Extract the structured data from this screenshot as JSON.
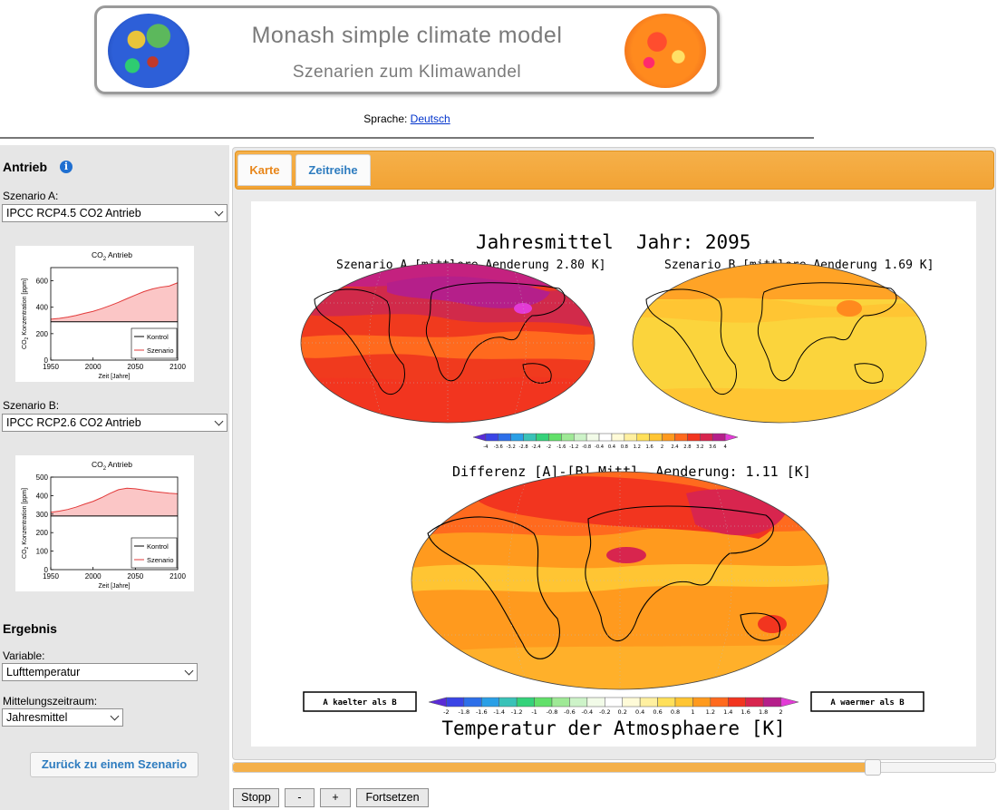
{
  "header": {
    "title": "Monash simple climate model",
    "subtitle": "Szenarien zum Klimawandel",
    "language_label": "Sprache:",
    "language_link": "Deutsch"
  },
  "sidebar": {
    "forcing_heading": "Antrieb",
    "scenario_a_label": "Szenario A:",
    "scenario_a_value": "IPCC RCP4.5 CO2 Antrieb",
    "scenario_b_label": "Szenario B:",
    "scenario_b_value": "IPCC RCP2.6 CO2 Antrieb",
    "result_heading": "Ergebnis",
    "variable_label": "Variable:",
    "variable_value": "Lufttemperatur",
    "period_label": "Mittelungszeitraum:",
    "period_value": "Jahresmittel",
    "back_button": "Zurück zu einem Szenario"
  },
  "mini_charts": [
    {
      "title_main": "CO",
      "title_sub": "2",
      "title_rest": " Antrieb",
      "ylabel_main": "CO",
      "ylabel_sub": "2",
      "ylabel_rest": " Konzentration [ppm]",
      "xlabel": "Zeit [Jahre]",
      "yticks": [
        "0",
        "200",
        "400",
        "600"
      ],
      "xticks": [
        "1950",
        "2000",
        "2050",
        "2100"
      ],
      "legend": [
        "Kontrol",
        "Szenario"
      ],
      "ymax": 700,
      "kontrol": 290,
      "szenario_years": [
        1950,
        1960,
        1970,
        1980,
        1990,
        2000,
        2010,
        2020,
        2030,
        2040,
        2050,
        2060,
        2070,
        2080,
        2090,
        2100
      ],
      "szenario_values": [
        310,
        316,
        325,
        338,
        354,
        369,
        389,
        412,
        437,
        465,
        492,
        518,
        538,
        552,
        560,
        585
      ]
    },
    {
      "title_main": "CO",
      "title_sub": "2",
      "title_rest": " Antrieb",
      "ylabel_main": "CO",
      "ylabel_sub": "2",
      "ylabel_rest": " Konzentration [ppm]",
      "xlabel": "Zeit [Jahre]",
      "yticks": [
        "0",
        "100",
        "200",
        "300",
        "400",
        "500"
      ],
      "xticks": [
        "1950",
        "2000",
        "2050",
        "2100"
      ],
      "legend": [
        "Kontrol",
        "Szenario"
      ],
      "ymax": 500,
      "kontrol": 290,
      "szenario_years": [
        1950,
        1960,
        1970,
        1980,
        1990,
        2000,
        2010,
        2020,
        2030,
        2040,
        2050,
        2060,
        2070,
        2080,
        2090,
        2100
      ],
      "szenario_values": [
        310,
        316,
        325,
        338,
        354,
        369,
        389,
        412,
        432,
        440,
        437,
        430,
        423,
        418,
        413,
        410
      ]
    }
  ],
  "tabs": [
    "Karte",
    "Zeitreihe"
  ],
  "plot": {
    "title_left": "Jahresmittel",
    "title_right": "Jahr: 2095",
    "map_a_title": "Szenario A [mittlere Aenderung 2.80 K]",
    "map_b_title": "Szenario B [mittlere Aenderung 1.69 K]",
    "diff_title_left": "Differenz [A]-[B]",
    "diff_title_right": "Mittl. Aenderung: 1.11 [K]",
    "colder_label": "A kaelter als B",
    "warmer_label": "A waermer als B",
    "bottom_title": "Temperatur der Atmosphaere [K]",
    "scale_top_labels": [
      "-4",
      "-3.6",
      "-3.2",
      "-2.8",
      "-2.4",
      "-2",
      "-1.6",
      "-1.2",
      "-0.8",
      "-0.4",
      "0.4",
      "0.8",
      "1.2",
      "1.6",
      "2",
      "2.4",
      "2.8",
      "3.2",
      "3.6",
      "4"
    ],
    "scale_bottom_labels": [
      "-2",
      "-1.8",
      "-1.6",
      "-1.4",
      "-1.2",
      "-1",
      "-0.8",
      "-0.6",
      "-0.4",
      "-0.2",
      "0.2",
      "0.4",
      "0.6",
      "0.8",
      "1",
      "1.2",
      "1.4",
      "1.6",
      "1.8",
      "2"
    ],
    "scale_colors": [
      "#5a2bd6",
      "#3a44e6",
      "#2d6fe9",
      "#2a9fe6",
      "#3ac2b8",
      "#35d27a",
      "#62e06a",
      "#9fe996",
      "#cdf3c8",
      "#f2fbe8",
      "#ffffff",
      "#fffbd8",
      "#fff0a0",
      "#ffe05a",
      "#ffc533",
      "#ff9a1e",
      "#ff6a1e",
      "#f2351f",
      "#d8254e",
      "#b51f8a",
      "#e33bd6"
    ]
  },
  "controls": {
    "stop": "Stopp",
    "minus": "-",
    "plus": "+",
    "resume": "Fortsetzen",
    "slider_fraction": 0.84
  }
}
